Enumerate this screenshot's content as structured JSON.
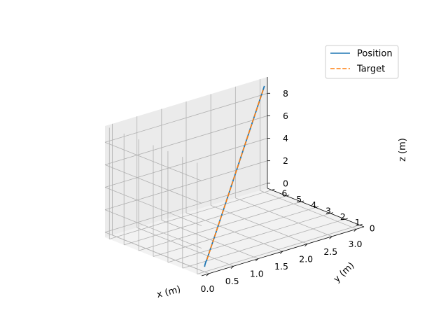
{
  "chart_data": {
    "type": "line",
    "projection": "3d",
    "title": "",
    "xlabel": "x (m)",
    "ylabel": "y (m)",
    "zlabel": "z (m)",
    "xlim": [
      -0.15,
      3.15
    ],
    "ylim": [
      -0.3,
      6.3
    ],
    "zlim": [
      -0.45,
      9.45
    ],
    "xticks": [
      0.0,
      0.5,
      1.0,
      1.5,
      2.0,
      2.5,
      3.0
    ],
    "xtick_labels": [
      "0.0",
      "0.5",
      "1.0",
      "1.5",
      "2.0",
      "2.5",
      "3.0"
    ],
    "yticks": [
      0,
      1,
      2,
      3,
      4,
      5,
      6
    ],
    "ytick_labels": [
      "0",
      "1",
      "2",
      "3",
      "4",
      "5",
      "6"
    ],
    "zticks": [
      0,
      2,
      4,
      6,
      8
    ],
    "ztick_labels": [
      "0",
      "2",
      "4",
      "6",
      "8"
    ],
    "grid": true,
    "legend_position": "top-right",
    "series": [
      {
        "name": "Position",
        "color": "#1f77b4",
        "linestyle": "solid",
        "x": [
          0.0,
          0.02,
          0.06,
          0.12,
          0.5,
          1.0,
          1.5,
          2.0,
          2.5,
          2.95,
          3.0
        ],
        "y": [
          0.0,
          0.05,
          0.14,
          0.25,
          1.0,
          2.0,
          3.0,
          4.0,
          5.0,
          5.9,
          6.0
        ],
        "z": [
          0.0,
          0.08,
          0.2,
          0.35,
          1.5,
          3.0,
          4.5,
          6.0,
          7.5,
          8.85,
          9.0
        ]
      },
      {
        "name": "Target",
        "color": "#ff7f0e",
        "linestyle": "dashed",
        "x": [
          0.12,
          0.5,
          1.0,
          1.5,
          2.0,
          2.5,
          2.95
        ],
        "y": [
          0.24,
          1.0,
          2.0,
          3.0,
          4.0,
          5.0,
          5.9
        ],
        "z": [
          0.36,
          1.5,
          3.0,
          4.5,
          6.0,
          7.5,
          8.85
        ]
      }
    ]
  }
}
